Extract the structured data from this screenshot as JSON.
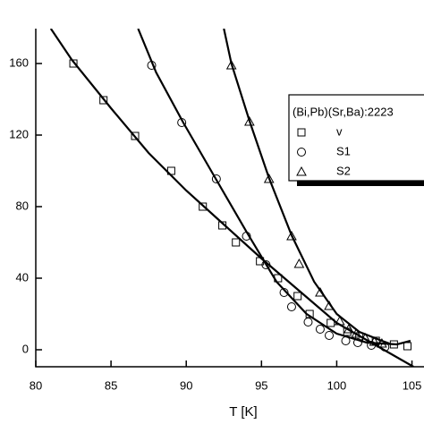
{
  "chart_data": {
    "type": "scatter",
    "xlabel": "T [K]",
    "xlim": [
      80,
      105.8
    ],
    "ylim": [
      -9.5,
      179.5
    ],
    "xticks": [
      80,
      85,
      90,
      95,
      100,
      105
    ],
    "yticks": [
      0,
      40,
      80,
      120,
      160
    ],
    "legend_title": "(Bi,Pb)(Sr,Ba):2223",
    "legend": "upper right",
    "series": [
      {
        "name": "v",
        "marker": "square",
        "color": "#000000",
        "x": [
          82.5,
          84.5,
          86.6,
          89,
          91.1,
          92.4,
          93.3,
          94.9,
          96.1,
          97.4,
          98.2,
          99.6,
          100.7,
          101.5,
          102.6,
          103.8,
          104.7
        ],
        "values": [
          160,
          139.5,
          119.5,
          100,
          80,
          69.5,
          60,
          49.5,
          40,
          30,
          20,
          15,
          10,
          7.5,
          5,
          3,
          2
        ]
      },
      {
        "name": "S1",
        "marker": "circle",
        "color": "#000000",
        "x": [
          87.7,
          89.7,
          92,
          94,
          95.3,
          96.5,
          97,
          98.1,
          98.9,
          99.5,
          100.6,
          101.4,
          102.3,
          103.2
        ],
        "values": [
          159,
          127,
          95.5,
          63.5,
          47.5,
          32,
          24,
          15.5,
          11.5,
          8,
          5,
          4,
          2.5,
          1.5
        ]
      },
      {
        "name": "S2",
        "marker": "triangle",
        "color": "#000000",
        "x": [
          93,
          94.2,
          95.5,
          97,
          97.5,
          98.9,
          99.5,
          100.2,
          100.8,
          101.3,
          101.9,
          102.5,
          103
        ],
        "values": [
          159,
          127.5,
          95.5,
          63.5,
          48,
          32,
          24.5,
          16,
          11.5,
          9,
          6.5,
          4.5,
          3.5
        ]
      }
    ],
    "fits": [
      {
        "color": "#000000",
        "x": [
          81,
          82.4,
          85,
          87.5,
          90,
          92.5,
          95,
          97.5,
          100,
          102.5,
          105.1
        ],
        "values": [
          179.5,
          162,
          135,
          110,
          89,
          70,
          51,
          33,
          15,
          3,
          -9.5
        ]
      },
      {
        "color": "#000000",
        "x": [
          86.8,
          88,
          89.8,
          92,
          94,
          96,
          98,
          100,
          102,
          104,
          104.9
        ],
        "values": [
          179.5,
          155,
          127,
          95,
          66,
          38,
          20,
          9,
          4,
          3,
          5
        ]
      },
      {
        "color": "#000000",
        "x": [
          92.5,
          93,
          94.2,
          95.5,
          97,
          98.5,
          100,
          101.5,
          103,
          103.5
        ],
        "values": [
          179.5,
          160,
          128,
          96,
          64,
          38,
          20,
          10,
          5,
          3.5
        ]
      }
    ]
  }
}
